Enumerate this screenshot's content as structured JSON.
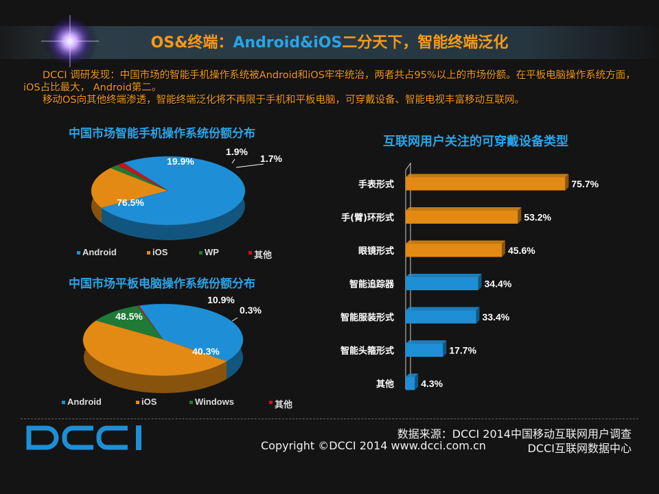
{
  "header": {
    "title_part1": "OS&终端：",
    "title_part2": "Android&iOS",
    "title_part3": "二分天下，智能终端泛化"
  },
  "intro": {
    "line1": "DCCI 调研发现：中国市场的智能手机操作系统被Android和iOS牢牢统治，两者共占95%以上的市场份额。在平板电脑操作系统方面，iOS占比最大， Android第二。",
    "line2": "移动OS向其他终端渗透，智能终端泛化将不再限于手机和平板电脑，可穿戴设备、智能电视丰富移动互联网。"
  },
  "footer": {
    "source": "数据来源：DCCI 2014中国移动互联网用户调查",
    "copyright": "Copyright ©DCCI 2014 www.dcci.com.cn",
    "center": "DCCI互联网数据中心",
    "logo": "DCCI"
  },
  "colors": {
    "blue": "#1e8fd6",
    "orange": "#e38a14",
    "green": "#1f7a35",
    "red": "#c8141e"
  },
  "chart_data": [
    {
      "type": "pie",
      "title": "中国市场智能手机操作系统份额分布",
      "categories": [
        "Android",
        "iOS",
        "WP",
        "其他"
      ],
      "values": [
        76.5,
        19.9,
        1.9,
        1.7
      ],
      "labels": [
        "76.5%",
        "19.9%",
        "1.9%",
        "1.7%"
      ],
      "legend": "bottom"
    },
    {
      "type": "pie",
      "title": "中国市场平板电脑操作系统份额分布",
      "categories": [
        "Android",
        "iOS",
        "Windows",
        "其他"
      ],
      "values": [
        40.3,
        48.5,
        10.9,
        0.3
      ],
      "labels": [
        "40.3%",
        "48.5%",
        "10.9%",
        "0.3%"
      ],
      "legend": "bottom"
    },
    {
      "type": "bar",
      "orientation": "horizontal",
      "title": "互联网用户关注的可穿戴设备类型",
      "categories": [
        "手表形式",
        "手(臂)环形式",
        "眼镜形式",
        "智能追踪器",
        "智能服装形式",
        "智能头箍形式",
        "其他"
      ],
      "values": [
        75.7,
        53.2,
        45.6,
        34.4,
        33.4,
        17.7,
        4.3
      ],
      "labels": [
        "75.7%",
        "53.2%",
        "45.6%",
        "34.4%",
        "33.4%",
        "17.7%",
        "4.3%"
      ],
      "highlight_count": 3
    }
  ]
}
